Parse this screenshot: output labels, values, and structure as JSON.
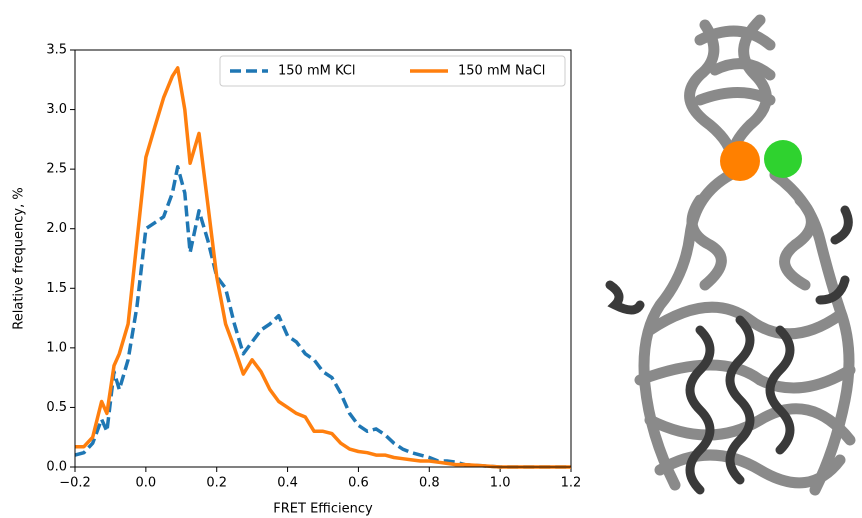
{
  "chart_data": {
    "type": "line",
    "xlabel": "FRET Efficiency",
    "ylabel": "Relative frequency, %",
    "x": [
      -0.2,
      -0.175,
      -0.15,
      -0.125,
      -0.11,
      -0.09,
      -0.075,
      -0.05,
      -0.025,
      0,
      0.025,
      0.05,
      0.075,
      0.09,
      0.11,
      0.125,
      0.15,
      0.175,
      0.2,
      0.225,
      0.25,
      0.275,
      0.3,
      0.325,
      0.35,
      0.375,
      0.4,
      0.425,
      0.45,
      0.475,
      0.5,
      0.525,
      0.55,
      0.575,
      0.6,
      0.625,
      0.65,
      0.675,
      0.7,
      0.725,
      0.75,
      0.775,
      0.8,
      0.825,
      0.85,
      0.875,
      0.9,
      0.95,
      1.0,
      1.2
    ],
    "series": [
      {
        "name": "150 mM KCl",
        "color": "#1f77b4",
        "dashed": true,
        "values": [
          0.1,
          0.12,
          0.2,
          0.4,
          0.3,
          0.8,
          0.65,
          0.9,
          1.35,
          2.0,
          2.05,
          2.1,
          2.3,
          2.52,
          2.3,
          1.8,
          2.15,
          1.9,
          1.6,
          1.5,
          1.2,
          0.95,
          1.05,
          1.15,
          1.2,
          1.27,
          1.1,
          1.05,
          0.95,
          0.9,
          0.8,
          0.75,
          0.62,
          0.45,
          0.35,
          0.3,
          0.32,
          0.27,
          0.2,
          0.15,
          0.12,
          0.1,
          0.08,
          0.05,
          0.05,
          0.04,
          0.02,
          0.01,
          0,
          0
        ]
      },
      {
        "name": "150 mM NaCl",
        "color": "#ff7f0e",
        "dashed": false,
        "values": [
          0.17,
          0.17,
          0.25,
          0.55,
          0.45,
          0.85,
          0.95,
          1.2,
          1.9,
          2.6,
          2.85,
          3.1,
          3.28,
          3.35,
          3.0,
          2.55,
          2.8,
          2.2,
          1.6,
          1.2,
          1.0,
          0.78,
          0.9,
          0.8,
          0.65,
          0.55,
          0.5,
          0.45,
          0.42,
          0.3,
          0.3,
          0.28,
          0.2,
          0.15,
          0.13,
          0.12,
          0.1,
          0.1,
          0.08,
          0.07,
          0.06,
          0.05,
          0.05,
          0.04,
          0.03,
          0.02,
          0.02,
          0.01,
          0,
          0
        ]
      }
    ],
    "xlim": [
      -0.2,
      1.2
    ],
    "ylim": [
      0,
      3.5
    ],
    "xticks": [
      {
        "value": -0.2,
        "label": "−0.2"
      },
      {
        "value": 0,
        "label": "0.0"
      },
      0.2,
      0.4,
      0.6,
      0.8,
      {
        "value": 1,
        "label": "1.0"
      },
      1.2
    ],
    "yticks": [
      {
        "value": 0,
        "label": "0.0"
      },
      0.5,
      {
        "value": 1,
        "label": "1.0"
      },
      1.5,
      {
        "value": 2,
        "label": "2.0"
      },
      2.5,
      {
        "value": 3,
        "label": "3.0"
      },
      3.5
    ],
    "legend": "upper right",
    "grid": false
  }
}
